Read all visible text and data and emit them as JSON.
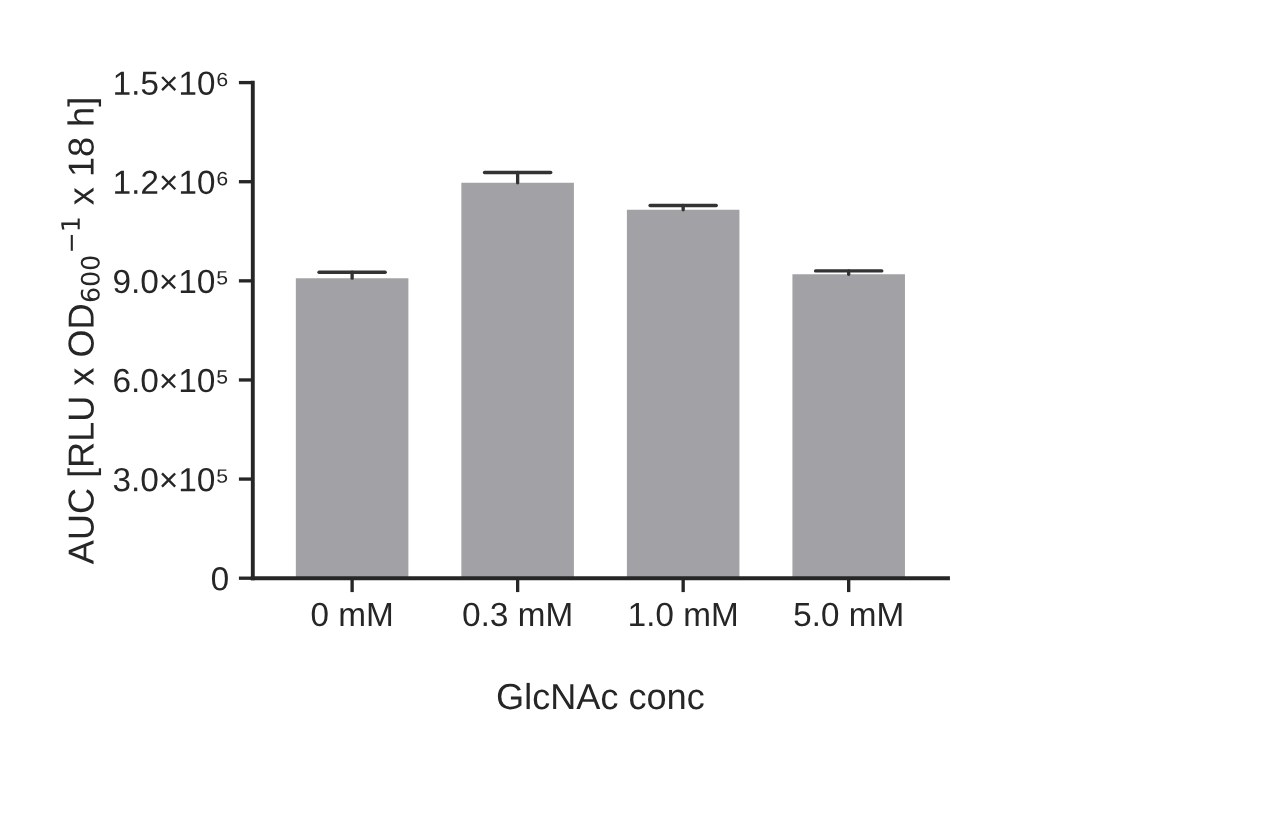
{
  "chart_data": {
    "type": "bar",
    "xlabel": "GlcNAc conc",
    "ylabel": "AUC [RLU x OD$_{600}$$^{−1}$ x 18 h]",
    "categories": [
      "0 mM",
      "0.3 mM",
      "1.0 mM",
      "5.0 mM"
    ],
    "values": [
      908000,
      1197000,
      1115000,
      920000
    ],
    "errors": [
      [
        908000,
        926000
      ],
      [
        1197000,
        1228000
      ],
      [
        1115000,
        1128000
      ],
      [
        920000,
        930000
      ]
    ],
    "color": "#a2a2a6",
    "ylim": [
      0,
      1500000
    ],
    "yticks": [
      {
        "value": 0,
        "label": "0"
      },
      {
        "value": 300000,
        "label": "3.0×10⁵"
      },
      {
        "value": 600000,
        "label": "6.0×10⁵"
      },
      {
        "value": 900000,
        "label": "9.0×10⁵"
      },
      {
        "value": 1200000,
        "label": "1.2×10⁶"
      },
      {
        "value": 1500000,
        "label": "1.5×10⁶"
      }
    ],
    "grid": false,
    "legend": false
  }
}
